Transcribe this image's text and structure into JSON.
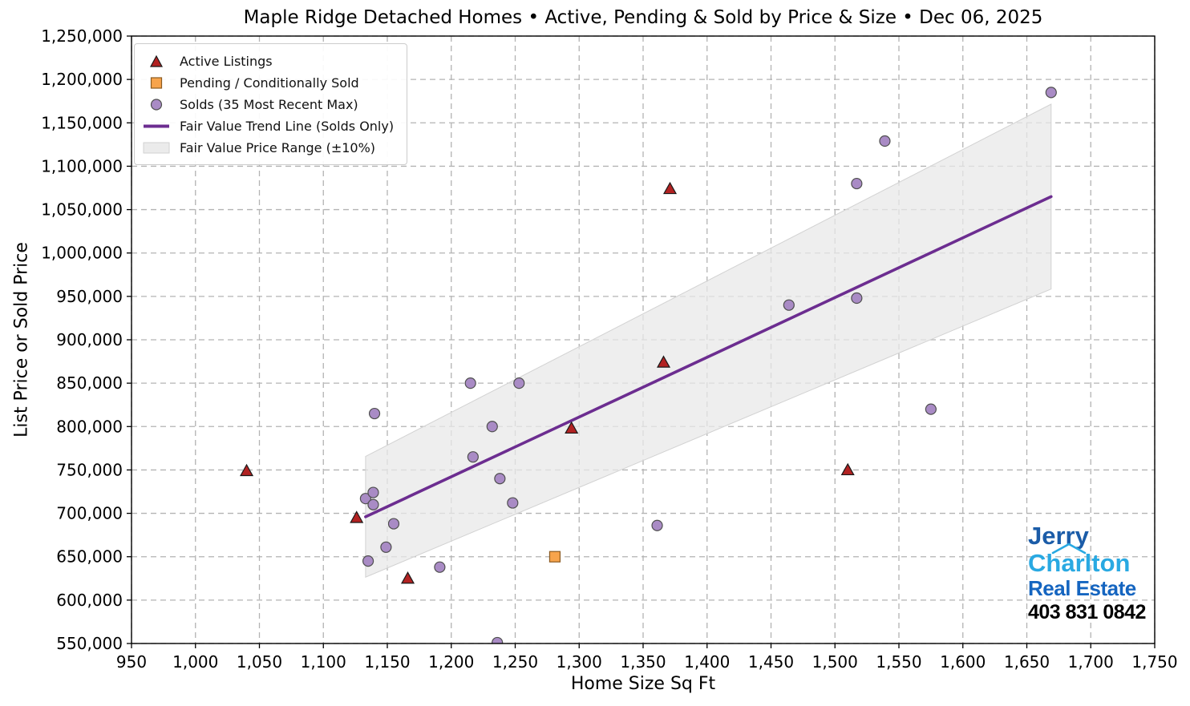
{
  "chart_data": {
    "type": "scatter",
    "title": "Maple Ridge Detached Homes • Active, Pending & Sold by Price & Size • Dec 06, 2025",
    "xlabel": "Home Size Sq Ft",
    "ylabel": "List Price or Sold Price",
    "xlim": [
      950,
      1750
    ],
    "ylim": [
      550000,
      1250000
    ],
    "x_tick_step": 50,
    "y_tick_step": 50000,
    "grid": true,
    "legend_position": "upper-left",
    "grid_color": "#b3b3b3",
    "axis_color": "#000000",
    "series": [
      {
        "name": "Active Listings",
        "type": "scatter",
        "marker": "triangle",
        "color": "#b22222",
        "edge": "#1a1a1a",
        "points": [
          [
            1040,
            749000
          ],
          [
            1126,
            695000
          ],
          [
            1166,
            625000
          ],
          [
            1294,
            798000
          ],
          [
            1366,
            874000
          ],
          [
            1371,
            1074000
          ],
          [
            1510,
            750000
          ]
        ]
      },
      {
        "name": "Pending / Conditionally Sold",
        "type": "scatter",
        "marker": "square",
        "color": "#f7a44c",
        "edge": "#8c5a1f",
        "points": [
          [
            1281,
            650000
          ]
        ]
      },
      {
        "name": "Solds (35 Most Recent Max)",
        "type": "scatter",
        "marker": "circle",
        "color": "#a98bc5",
        "edge": "#4f4f4f",
        "points": [
          [
            1133,
            717000
          ],
          [
            1135,
            645000
          ],
          [
            1139,
            710000
          ],
          [
            1139,
            724000
          ],
          [
            1140,
            815000
          ],
          [
            1149,
            661000
          ],
          [
            1155,
            688000
          ],
          [
            1191,
            638000
          ],
          [
            1215,
            850000
          ],
          [
            1217,
            765000
          ],
          [
            1232,
            800000
          ],
          [
            1236,
            551000
          ],
          [
            1238,
            740000
          ],
          [
            1248,
            712000
          ],
          [
            1253,
            850000
          ],
          [
            1361,
            686000
          ],
          [
            1464,
            940000
          ],
          [
            1517,
            948000
          ],
          [
            1517,
            1080000
          ],
          [
            1539,
            1129000
          ],
          [
            1575,
            820000
          ],
          [
            1669,
            1185000
          ]
        ]
      },
      {
        "name": "Fair Value Trend Line (Solds Only)",
        "type": "line",
        "marker": "line",
        "color": "#6c2d90",
        "points": [
          [
            1133,
            696000
          ],
          [
            1669,
            1065000
          ]
        ]
      },
      {
        "name": "Fair Value Price Range (±10%)",
        "type": "band",
        "marker": "band",
        "color": "#e8e8e8",
        "edge": "#d2d2d2",
        "points": [
          [
            1133,
            765600
          ],
          [
            1669,
            1171500
          ],
          [
            1669,
            958500
          ],
          [
            1133,
            626400
          ]
        ]
      }
    ]
  },
  "watermark": {
    "line1": "Jerry",
    "line2": "Charlton",
    "line3": "Real Estate",
    "line4": "403 831 0842",
    "color1": "#1b5ca8",
    "color2": "#29a9e2",
    "color3": "#1565c0",
    "color4": "#000000"
  }
}
